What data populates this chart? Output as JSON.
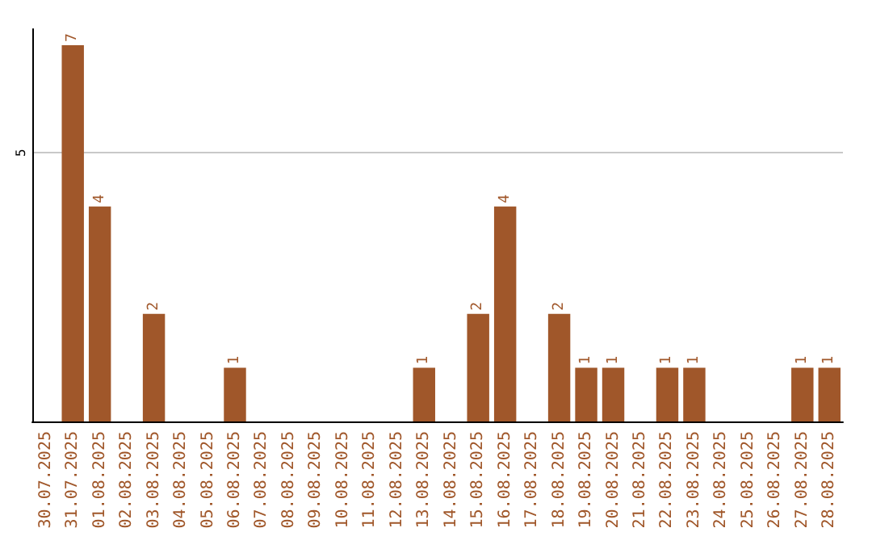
{
  "chart_data": {
    "type": "bar",
    "categories": [
      "30.07.2025",
      "31.07.2025",
      "01.08.2025",
      "02.08.2025",
      "03.08.2025",
      "04.08.2025",
      "05.08.2025",
      "06.08.2025",
      "07.08.2025",
      "08.08.2025",
      "09.08.2025",
      "10.08.2025",
      "11.08.2025",
      "12.08.2025",
      "13.08.2025",
      "14.08.2025",
      "15.08.2025",
      "16.08.2025",
      "17.08.2025",
      "18.08.2025",
      "19.08.2025",
      "20.08.2025",
      "21.08.2025",
      "22.08.2025",
      "23.08.2025",
      "24.08.2025",
      "25.08.2025",
      "26.08.2025",
      "27.08.2025",
      "28.08.2025"
    ],
    "values": [
      null,
      7,
      4,
      null,
      2,
      null,
      null,
      1,
      null,
      null,
      null,
      null,
      null,
      null,
      1,
      null,
      2,
      4,
      null,
      2,
      1,
      1,
      null,
      1,
      1,
      null,
      null,
      null,
      1,
      1
    ],
    "color": "#a0572a",
    "ylim": [
      0,
      7.3
    ],
    "yticks": [
      5
    ],
    "grid": "y",
    "data_labels": true
  }
}
